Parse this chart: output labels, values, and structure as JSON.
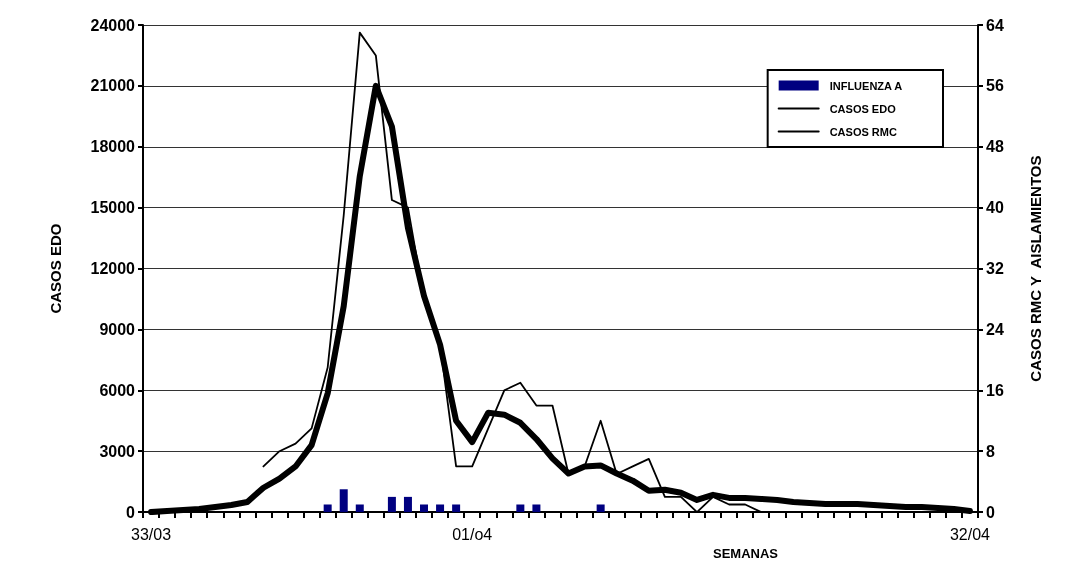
{
  "chart_data": {
    "type": "line",
    "xlabel": "SEMANAS",
    "ylabel": "CASOS EDO",
    "y2label": "CASOS RMC Y  AISLAMIENTOS",
    "categories": [
      "33/03",
      null,
      null,
      null,
      null,
      null,
      null,
      null,
      null,
      null,
      null,
      null,
      null,
      null,
      null,
      null,
      null,
      null,
      null,
      null,
      "01/o4",
      null,
      null,
      null,
      null,
      null,
      null,
      null,
      null,
      null,
      null,
      null,
      null,
      null,
      null,
      null,
      null,
      null,
      null,
      null,
      null,
      null,
      null,
      null,
      null,
      null,
      null,
      null,
      null,
      null,
      null,
      "32/04"
    ],
    "series": [
      {
        "name": "INFLUENZA A",
        "type": "bar",
        "axis": "y2",
        "color": "#000080",
        "values": [
          0,
          0,
          0,
          0,
          0,
          0,
          0,
          0,
          0,
          0,
          0,
          1,
          3,
          1,
          0,
          2,
          2,
          1,
          1,
          1,
          0,
          0,
          0,
          1,
          1,
          0,
          0,
          0,
          1,
          0,
          0,
          0,
          0,
          0,
          0,
          0,
          0,
          0,
          0,
          0,
          0,
          0,
          0,
          0,
          0,
          0,
          0,
          0,
          0,
          0,
          0,
          0
        ]
      },
      {
        "name": "CASOS EDO",
        "color": "#000000",
        "values": [
          0,
          50,
          100,
          150,
          250,
          350,
          500,
          1200,
          1650,
          2250,
          3300,
          5850,
          10150,
          16550,
          21000,
          19000,
          14000,
          10650,
          8250,
          4500,
          3450,
          4900,
          4800,
          4400,
          3600,
          2650,
          1900,
          2250,
          2300,
          1900,
          1550,
          1050,
          1100,
          950,
          600,
          850,
          700,
          700,
          650,
          600,
          500,
          450,
          400,
          400,
          400,
          350,
          300,
          250,
          250,
          200,
          150,
          50
        ]
      },
      {
        "name": "CASOS RMC",
        "axis": "y2",
        "color": "#000000",
        "values": [
          null,
          null,
          null,
          null,
          null,
          null,
          null,
          6,
          8,
          9,
          11,
          19,
          39,
          63,
          60,
          41,
          40,
          28,
          22,
          6,
          6,
          11,
          16,
          17,
          14,
          14,
          5,
          6,
          12,
          5,
          6,
          7,
          2,
          2,
          0,
          2,
          1,
          1,
          0,
          0,
          0,
          0,
          0,
          0,
          0,
          0,
          0,
          0,
          0,
          0,
          0,
          0
        ]
      }
    ],
    "ylim": [
      0,
      24000
    ],
    "yticks": [
      0,
      3000,
      6000,
      9000,
      12000,
      15000,
      18000,
      21000,
      24000
    ],
    "y2lim": [
      0,
      64
    ],
    "y2ticks": [
      0,
      8,
      16,
      24,
      32,
      40,
      48,
      56,
      64
    ],
    "grid": "y",
    "legend": "top right",
    "marker": "none",
    "line_style": "solid"
  }
}
